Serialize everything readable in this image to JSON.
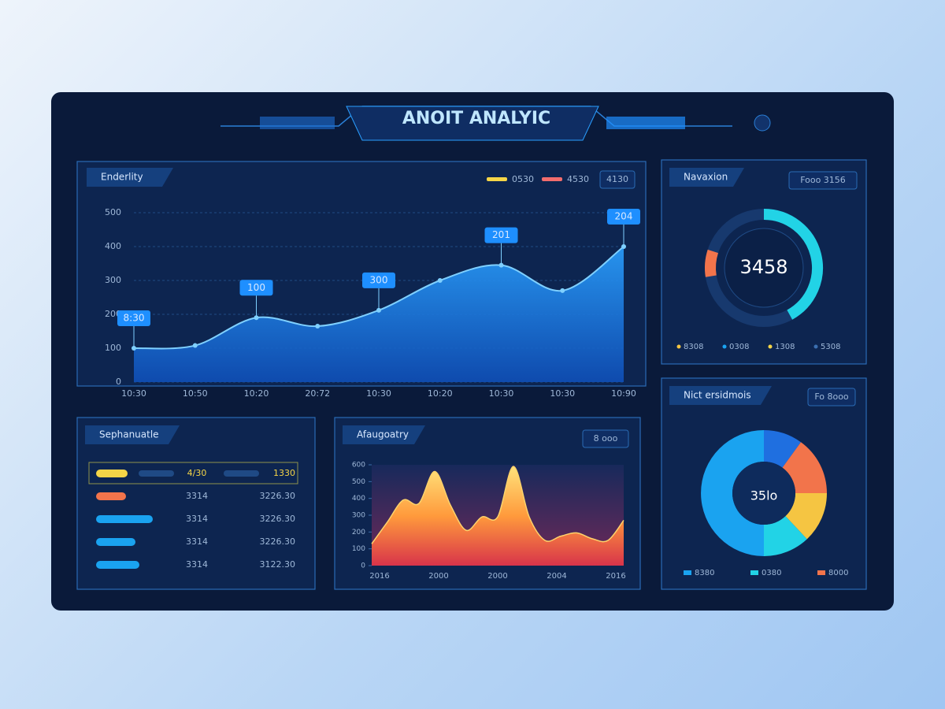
{
  "header": {
    "title": "ANOIT ANALYIC"
  },
  "chart_data": [
    {
      "type": "area",
      "title": "Enderlity",
      "legend": [
        {
          "name": "0530",
          "color": "#f5d547"
        },
        {
          "name": "4530",
          "color": "#f26d6d"
        }
      ],
      "button": "4130",
      "categories": [
        "10:30",
        "10:50",
        "10:20",
        "20:72",
        "10:30",
        "10:20",
        "10:30",
        "10:30",
        "10:90"
      ],
      "values": [
        100,
        108,
        190,
        165,
        212,
        300,
        345,
        270,
        400
      ],
      "color": "#1e8fff",
      "annotations": [
        "8:30",
        "100",
        "300",
        "201",
        "204"
      ],
      "ylim": [
        0,
        500
      ],
      "yticks": [
        0,
        100,
        200,
        300,
        400,
        500
      ],
      "grid": true
    },
    {
      "type": "gauge",
      "title": "Navaxion",
      "button": "Fooo 3156",
      "center": "3458",
      "values": [
        42
      ],
      "color": "#22d3e6",
      "ylim": [
        0,
        100
      ],
      "legend": [
        {
          "name": "8308",
          "color": "#f5c542"
        },
        {
          "name": "0308",
          "color": "#1aa3f0"
        },
        {
          "name": "1308",
          "color": "#f5d547"
        },
        {
          "name": "5308",
          "color": "#3b6fb0"
        }
      ]
    },
    {
      "type": "hbar",
      "title": "Sephanuatle",
      "values": [
        40,
        38,
        72,
        50,
        55
      ],
      "colors": [
        "#f5d547",
        "#f2744b",
        "#1aa3f0",
        "#1aa3f0",
        "#1aa3f0"
      ],
      "xlim": [
        0,
        100
      ],
      "col1": [
        "4/30",
        "3314",
        "3314",
        "3314",
        "3314"
      ],
      "col2": [
        "1330",
        "3226.30",
        "3226.30",
        "3226.30",
        "3122.30"
      ]
    },
    {
      "type": "heat",
      "title": "Afaugoatry",
      "button": "8 ooo",
      "xticks": [
        "2016",
        "2000",
        "2000",
        "2004",
        "2016"
      ],
      "values": [
        130,
        260,
        390,
        370,
        560,
        360,
        210,
        290,
        290,
        590,
        290,
        150,
        175,
        195,
        160,
        150,
        270
      ],
      "ylim": [
        0,
        600
      ],
      "yticks": [
        0,
        100,
        200,
        300,
        400,
        500,
        600
      ]
    },
    {
      "type": "donut",
      "title": "Nict ersidmois",
      "button": "Fo 8ooo",
      "center": "35lo",
      "values": [
        10,
        15,
        13,
        12,
        50
      ],
      "colors": [
        "#1f6fe0",
        "#f2744b",
        "#f5c542",
        "#22d3e6",
        "#1aa3f0"
      ],
      "legend": [
        {
          "name": "8380",
          "color": "#1aa3f0"
        },
        {
          "name": "0380",
          "color": "#22d3e6"
        },
        {
          "name": "8000",
          "color": "#f2744b"
        }
      ]
    }
  ]
}
